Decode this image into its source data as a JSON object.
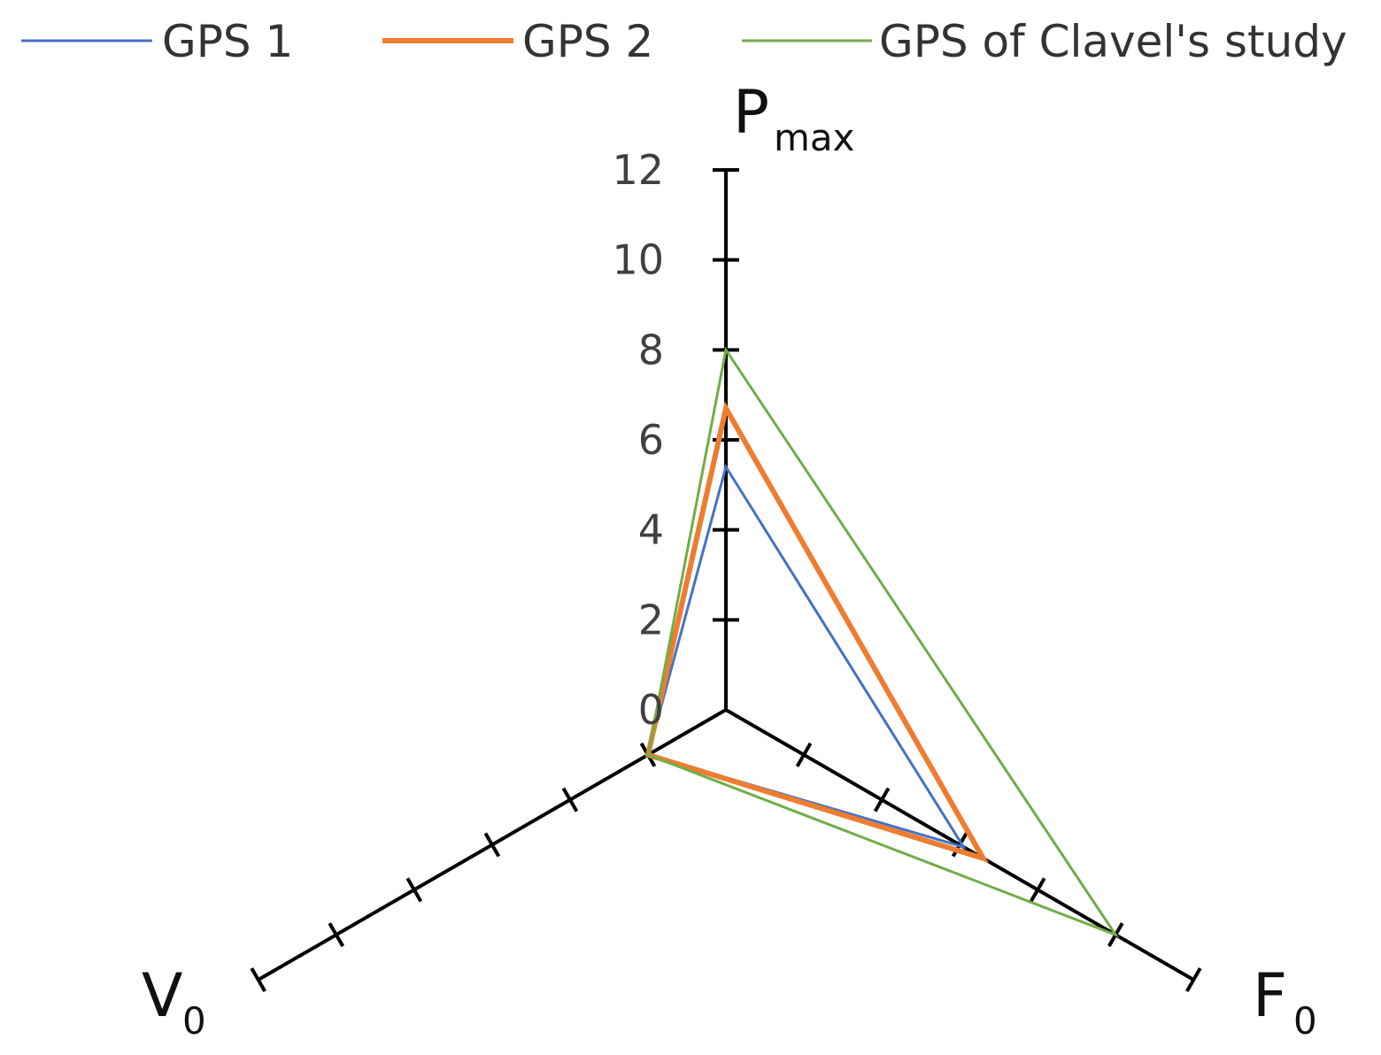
{
  "chart_data": {
    "type": "radar",
    "title": "",
    "axes": [
      {
        "id": "pmax",
        "label": "P",
        "sub": "max"
      },
      {
        "id": "f0",
        "label": "F",
        "sub": "0"
      },
      {
        "id": "v0",
        "label": "V",
        "sub": "0"
      }
    ],
    "scale": {
      "min": 0,
      "max": 12,
      "step": 2
    },
    "tick_labels": [
      "0",
      "2",
      "4",
      "6",
      "8",
      "10",
      "12"
    ],
    "series": [
      {
        "name": "GPS 1",
        "color": "#4472C4",
        "width": 3,
        "values": {
          "pmax": 5.4,
          "f0": 6.1,
          "v0": 2.0
        }
      },
      {
        "name": "GPS 2",
        "color": "#ED7D31",
        "width": 6,
        "values": {
          "pmax": 6.7,
          "f0": 6.6,
          "v0": 2.0
        }
      },
      {
        "name": "GPS of Clavel's study",
        "color": "#70AD47",
        "width": 3,
        "values": {
          "pmax": 8.0,
          "f0": 10.0,
          "v0": 2.0
        }
      }
    ],
    "legend_position": "top"
  }
}
